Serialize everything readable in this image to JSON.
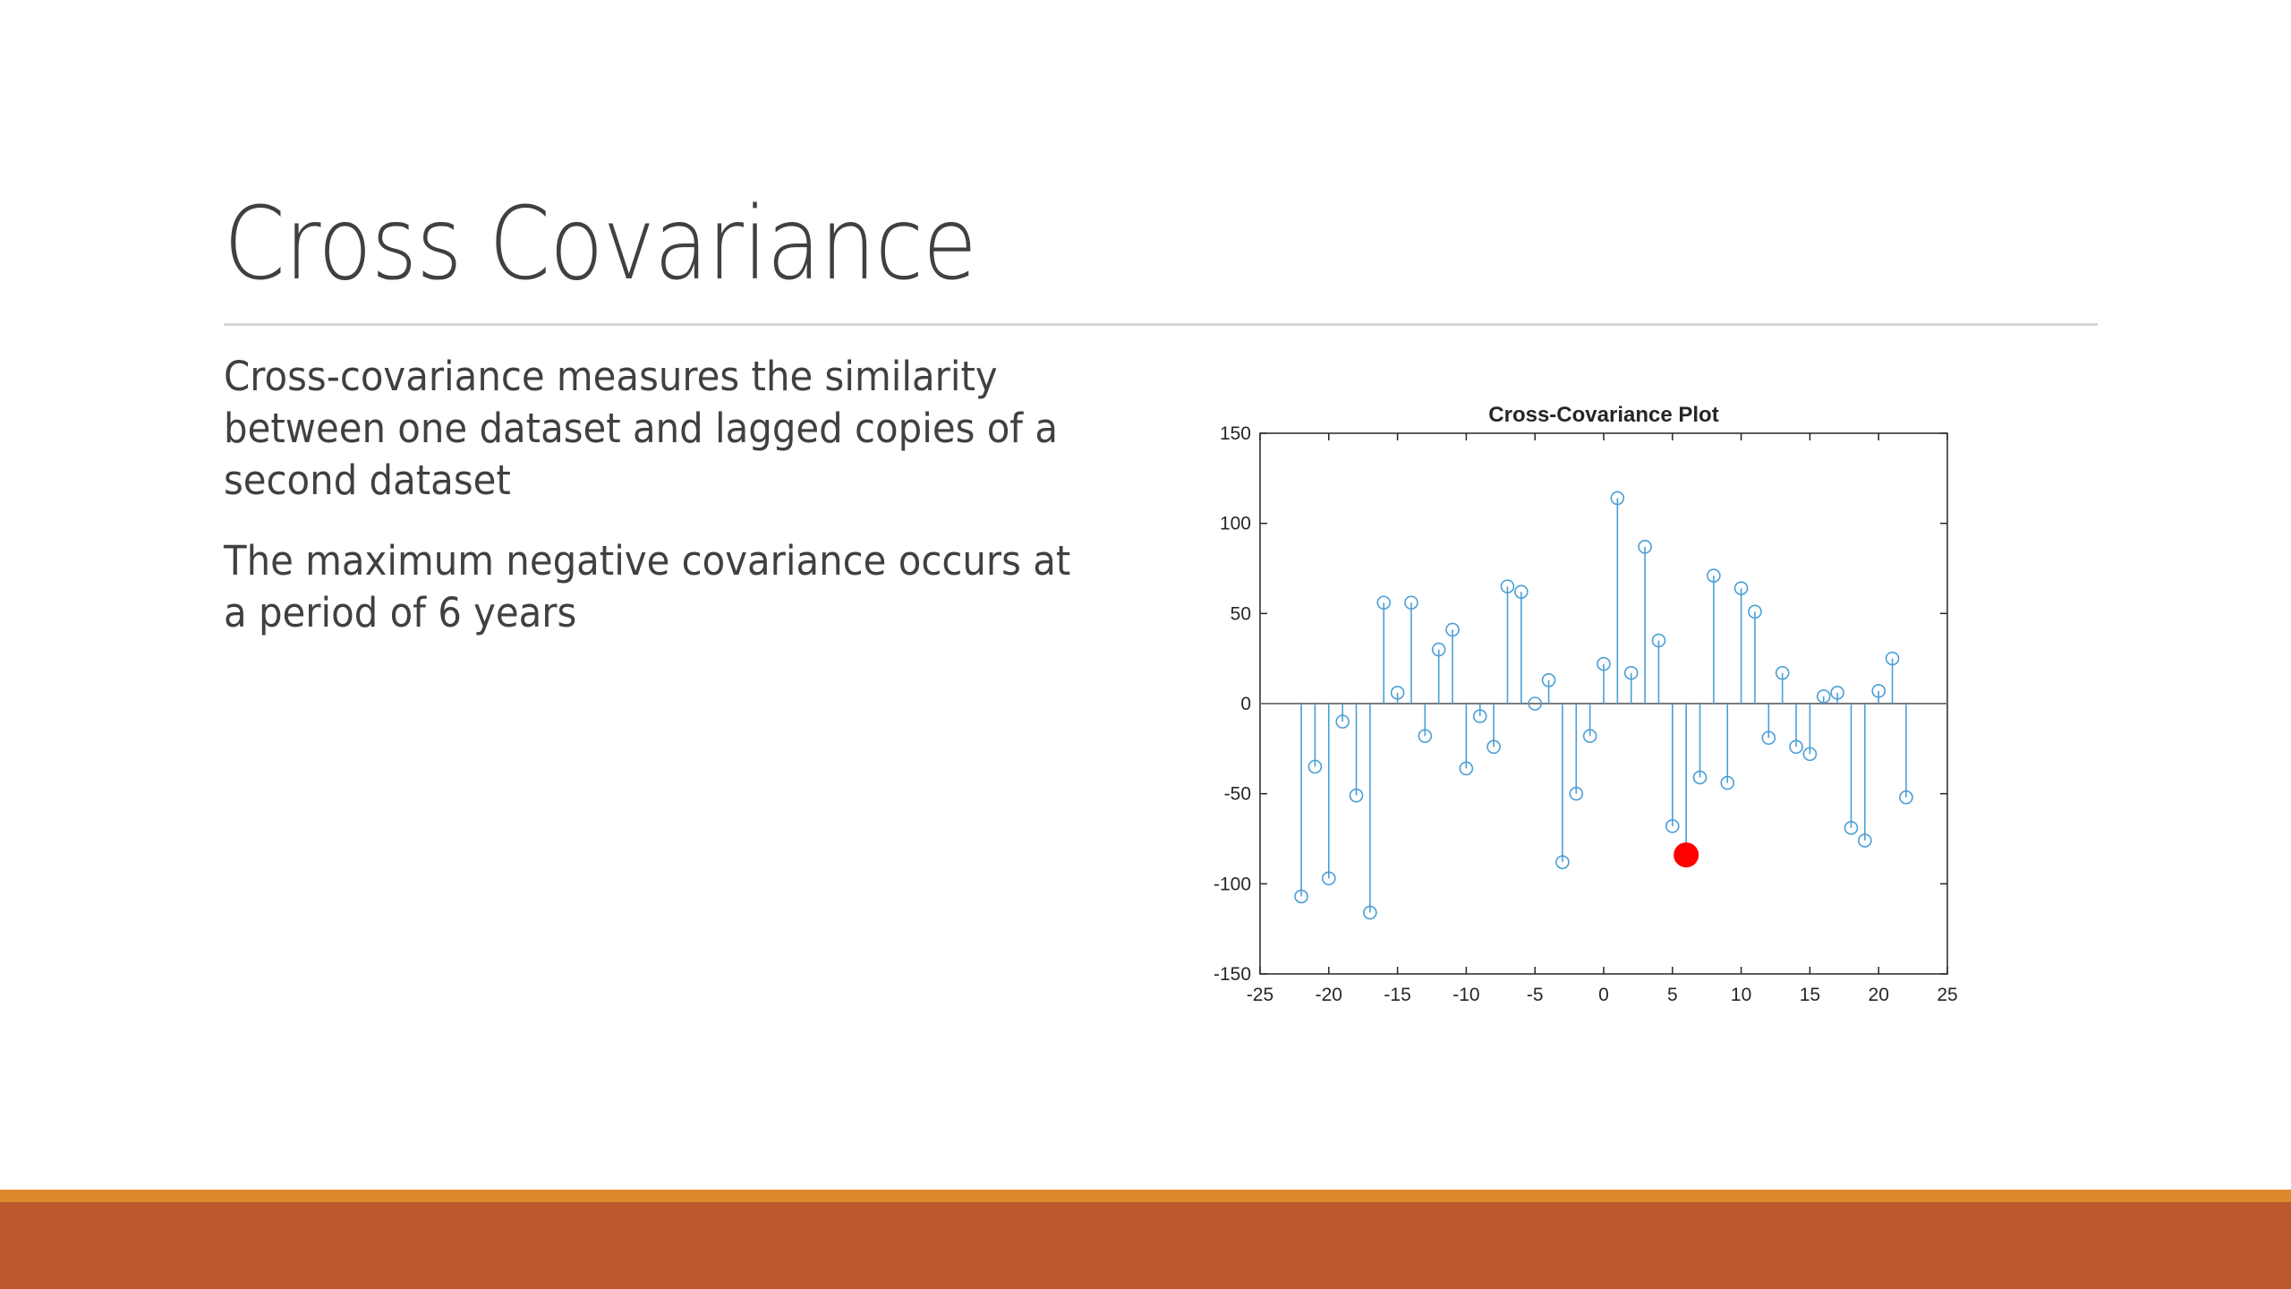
{
  "slide": {
    "title": "Cross Covariance",
    "bullets": [
      "Cross-covariance measures the similarity between one dataset and lagged copies of a second dataset",
      "The maximum negative covariance occurs at a period of 6 years"
    ]
  },
  "colors": {
    "stem": "#4a9fd6",
    "highlight": "#ff0000",
    "footer_light": "#dd8a2d",
    "footer_dark": "#bc582c"
  },
  "chart_data": {
    "type": "stem",
    "title": "Cross-Covariance Plot",
    "xlim": [
      -25,
      25
    ],
    "ylim": [
      -150,
      150
    ],
    "xticks": [
      -25,
      -20,
      -15,
      -10,
      -5,
      0,
      5,
      10,
      15,
      20,
      25
    ],
    "yticks": [
      150,
      100,
      50,
      0,
      -50,
      -100,
      -150
    ],
    "x": [
      -22,
      -21,
      -20,
      -19,
      -18,
      -17,
      -16,
      -15,
      -14,
      -13,
      -12,
      -11,
      -10,
      -9,
      -8,
      -7,
      -6,
      -5,
      -4,
      -3,
      -2,
      -1,
      0,
      1,
      2,
      3,
      4,
      5,
      6,
      7,
      8,
      9,
      10,
      11,
      12,
      13,
      14,
      15,
      16,
      17,
      18,
      19,
      20,
      21,
      22
    ],
    "y": [
      -107,
      -35,
      -97,
      -10,
      -51,
      -116,
      56,
      6,
      56,
      -18,
      30,
      41,
      -36,
      -7,
      -24,
      65,
      62,
      0,
      13,
      -88,
      -50,
      -18,
      22,
      114,
      17,
      87,
      35,
      -68,
      -84,
      -41,
      71,
      -44,
      64,
      51,
      -19,
      17,
      -24,
      -28,
      4,
      6,
      -69,
      -76,
      7,
      25,
      -52
    ],
    "highlight": {
      "x": 6,
      "y": -84
    },
    "grid": false
  }
}
